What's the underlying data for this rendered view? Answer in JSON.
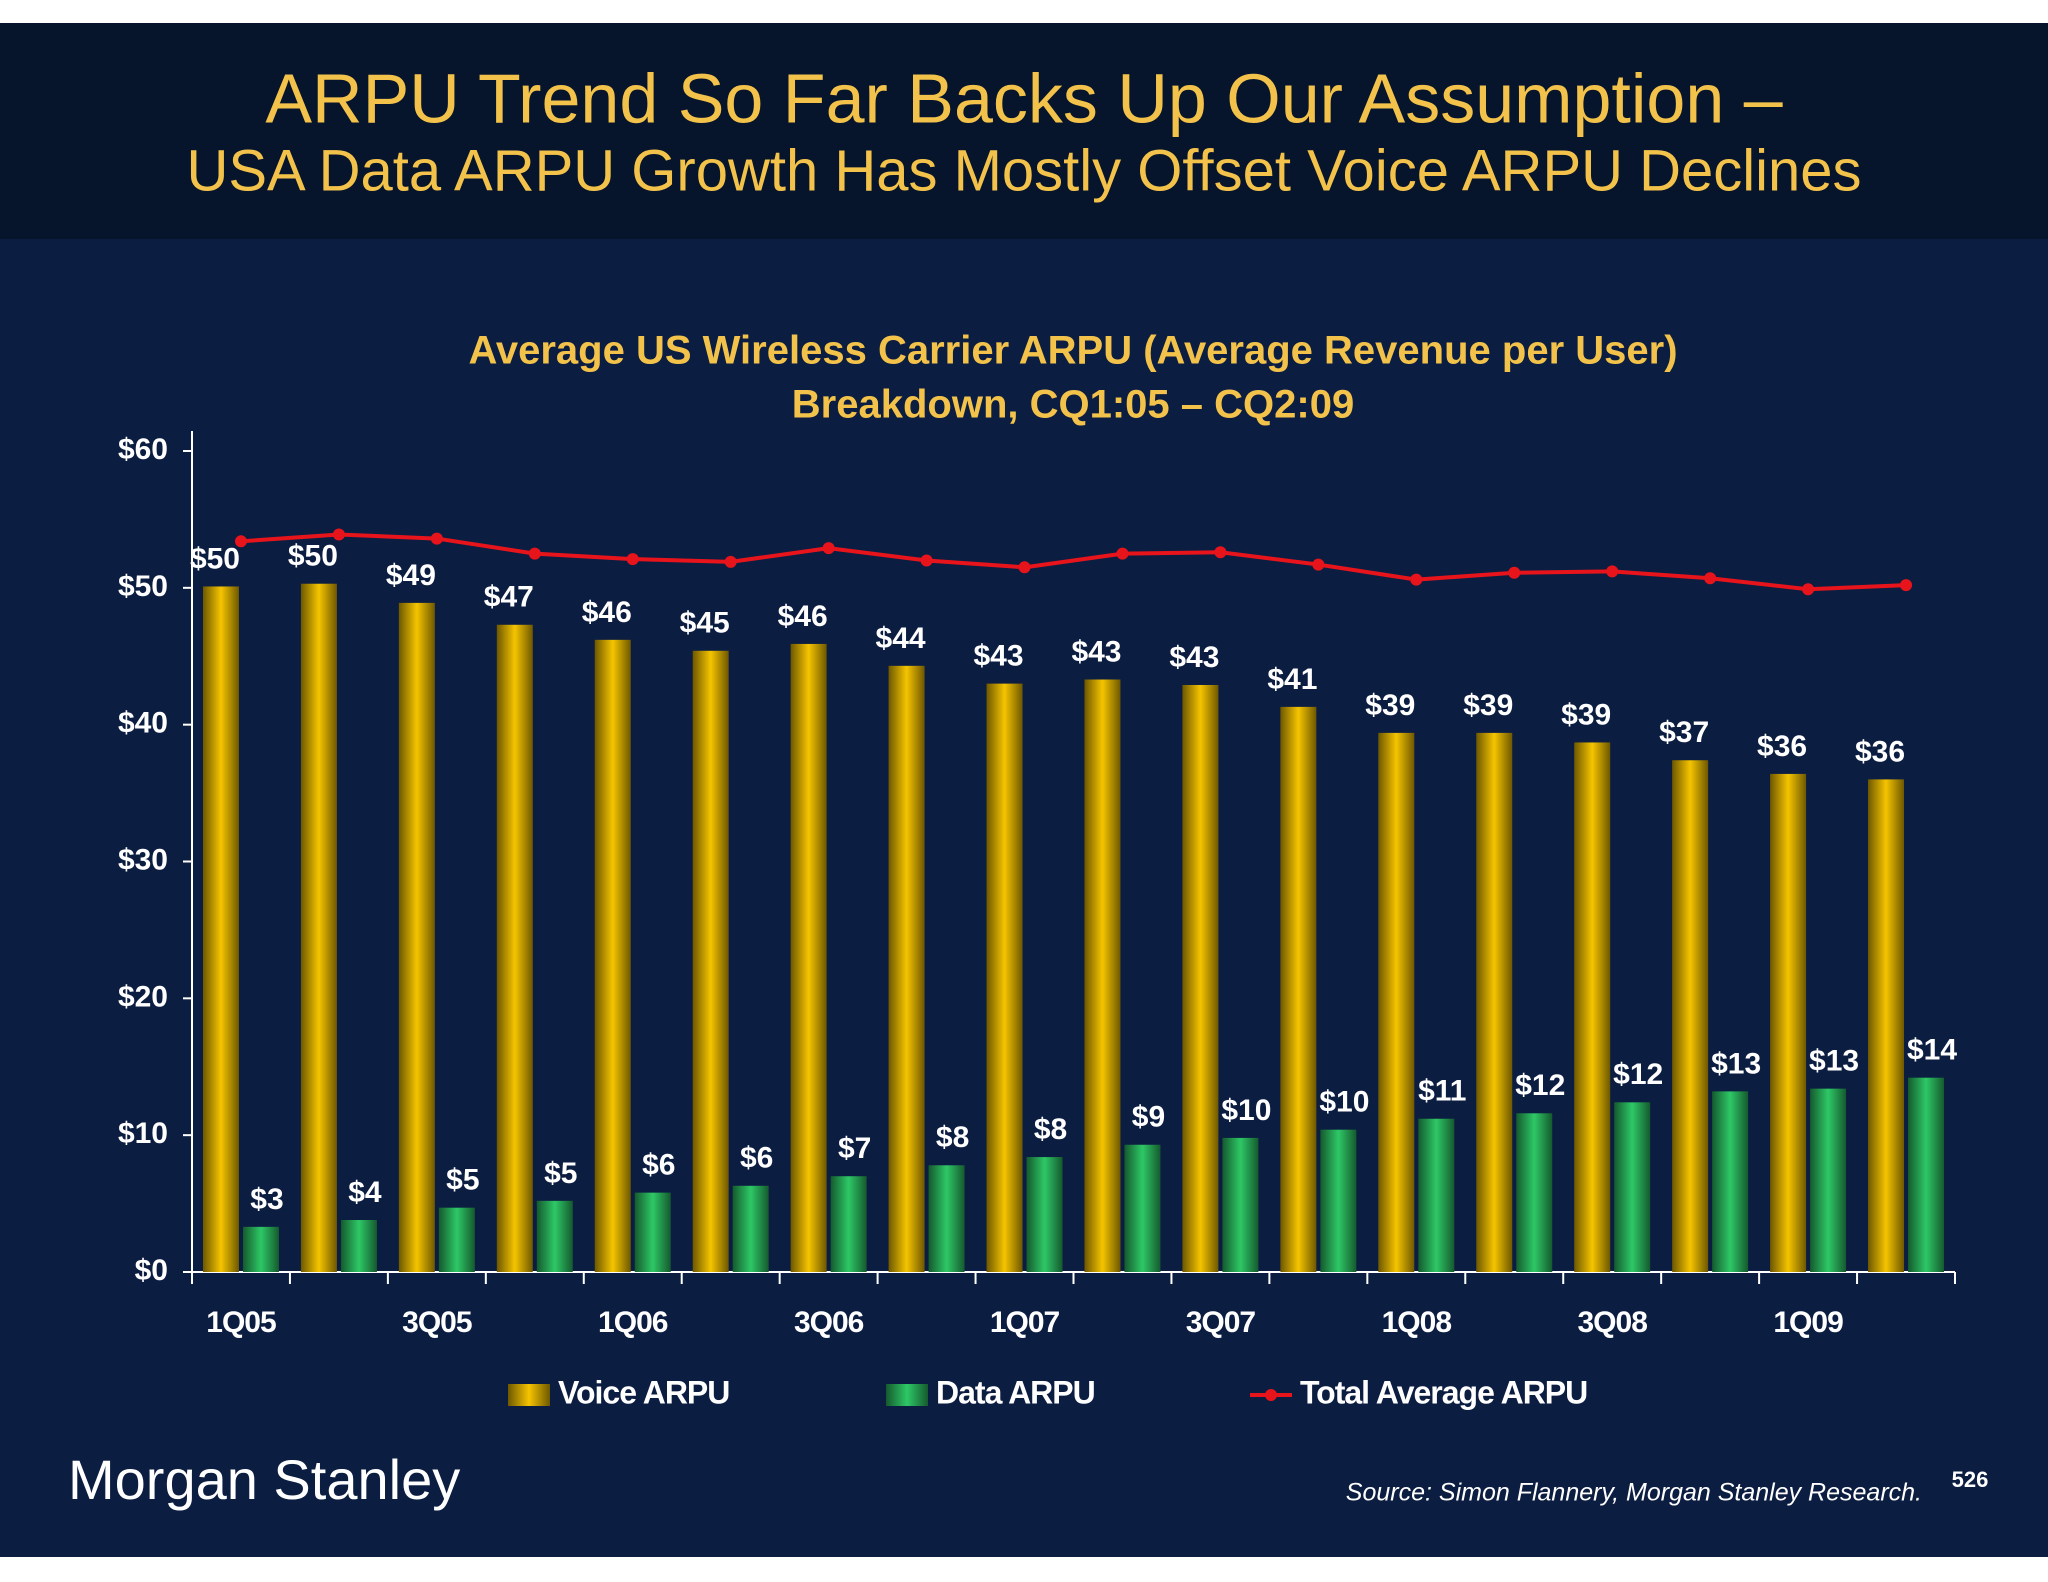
{
  "header": {
    "title": "ARPU Trend So Far Backs Up Our Assumption –",
    "subtitle": "USA Data ARPU Growth Has Mostly Offset Voice ARPU Declines"
  },
  "chart_data": {
    "type": "bar",
    "title": "Average US Wireless Carrier ARPU (Average Revenue per User)",
    "subtitle": "Breakdown, CQ1:05 – CQ2:09",
    "categories": [
      "1Q05",
      null,
      "3Q05",
      null,
      "1Q06",
      null,
      "3Q06",
      null,
      "1Q07",
      null,
      "3Q07",
      null,
      "1Q08",
      null,
      "3Q08",
      null,
      "1Q09",
      null
    ],
    "series": [
      {
        "name": "Voice ARPU",
        "color": "#f5c400",
        "type": "bar",
        "values": [
          50.1,
          50.3,
          48.9,
          47.3,
          46.2,
          45.4,
          45.9,
          44.3,
          43.0,
          43.3,
          42.9,
          41.3,
          39.4,
          39.4,
          38.7,
          37.4,
          36.4,
          36.0
        ],
        "value_labels": [
          "$50",
          "$50",
          "$49",
          "$47",
          "$46",
          "$45",
          "$46",
          "$44",
          "$43",
          "$43",
          "$43",
          "$41",
          "$39",
          "$39",
          "$39",
          "$37",
          "$36",
          "$36"
        ]
      },
      {
        "name": "Data ARPU",
        "color": "#2ec866",
        "type": "bar",
        "values": [
          3.3,
          3.8,
          4.7,
          5.2,
          5.8,
          6.3,
          7.0,
          7.8,
          8.4,
          9.3,
          9.8,
          10.4,
          11.2,
          11.6,
          12.4,
          13.2,
          13.4,
          14.2
        ],
        "value_labels": [
          "$3",
          "$4",
          "$5",
          "$5",
          "$6",
          "$6",
          "$7",
          "$8",
          "$8",
          "$9",
          "$10",
          "$10",
          "$11",
          "$12",
          "$12",
          "$13",
          "$13",
          "$14"
        ]
      },
      {
        "name": "Total Average ARPU",
        "color": "#e8141b",
        "type": "line",
        "values": [
          53.4,
          53.9,
          53.6,
          52.5,
          52.1,
          51.9,
          52.9,
          52.0,
          51.5,
          52.5,
          52.6,
          51.7,
          50.6,
          51.1,
          51.2,
          50.7,
          49.9,
          50.2
        ]
      }
    ],
    "ylim": [
      0,
      60
    ],
    "yticks": [
      {
        "value": 0,
        "label": "$0"
      },
      {
        "value": 10,
        "label": "$10"
      },
      {
        "value": 20,
        "label": "$20"
      },
      {
        "value": 30,
        "label": "$30"
      },
      {
        "value": 40,
        "label": "$40"
      },
      {
        "value": 50,
        "label": "$50"
      },
      {
        "value": 60,
        "label": "$60"
      }
    ],
    "grid": false,
    "legend": "bottom"
  },
  "footer": {
    "logo": "Morgan Stanley",
    "source": "Source: Simon Flannery, Morgan Stanley Research.",
    "page_number": 526
  }
}
